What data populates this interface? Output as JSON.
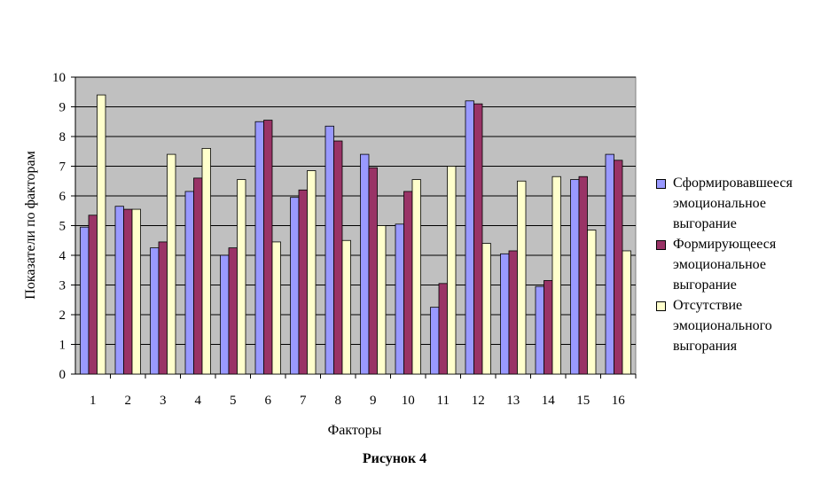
{
  "chart_data": {
    "type": "bar",
    "categories": [
      "1",
      "2",
      "3",
      "4",
      "5",
      "6",
      "7",
      "8",
      "9",
      "10",
      "11",
      "12",
      "13",
      "14",
      "15",
      "16"
    ],
    "series": [
      {
        "name": "Сформировавшееся эмоциональное выгорание",
        "color": "#9999ff",
        "values": [
          4.95,
          5.65,
          4.25,
          6.15,
          4.0,
          8.5,
          5.95,
          8.35,
          7.4,
          5.05,
          2.25,
          9.2,
          4.05,
          2.95,
          6.55,
          7.4
        ]
      },
      {
        "name": "Формирующееся эмоциональное выгорание",
        "color": "#993366",
        "values": [
          5.35,
          5.55,
          4.45,
          6.6,
          4.25,
          8.55,
          6.2,
          7.85,
          6.95,
          6.15,
          3.05,
          9.1,
          4.15,
          3.15,
          6.65,
          7.2
        ]
      },
      {
        "name": "Отсутствие эмоционального выгорания",
        "color": "#ffffcc",
        "values": [
          9.4,
          5.55,
          7.4,
          7.6,
          6.55,
          4.45,
          6.85,
          4.5,
          5.0,
          6.55,
          7.0,
          4.4,
          6.5,
          6.65,
          4.85,
          4.15
        ]
      }
    ],
    "yticks": [
      "0",
      "1",
      "2",
      "3",
      "4",
      "5",
      "6",
      "7",
      "8",
      "9",
      "10"
    ],
    "ylim": [
      0,
      10
    ],
    "xlabel": "Факторы",
    "ylabel": "Показатели по факторам",
    "caption": "Рисунок 4",
    "plot_background": "#c0c0c0",
    "grid": true,
    "legend_position": "right"
  },
  "legend": {
    "items": [
      {
        "label": "Сформировавшееся\nэмоциональное\nвыгорание",
        "color": "#9999ff"
      },
      {
        "label": "Формирующееся\nэмоциональное\nвыгорание",
        "color": "#993366"
      },
      {
        "label": "Отсутствие\nэмоционального\nвыгорания",
        "color": "#ffffcc"
      }
    ]
  }
}
